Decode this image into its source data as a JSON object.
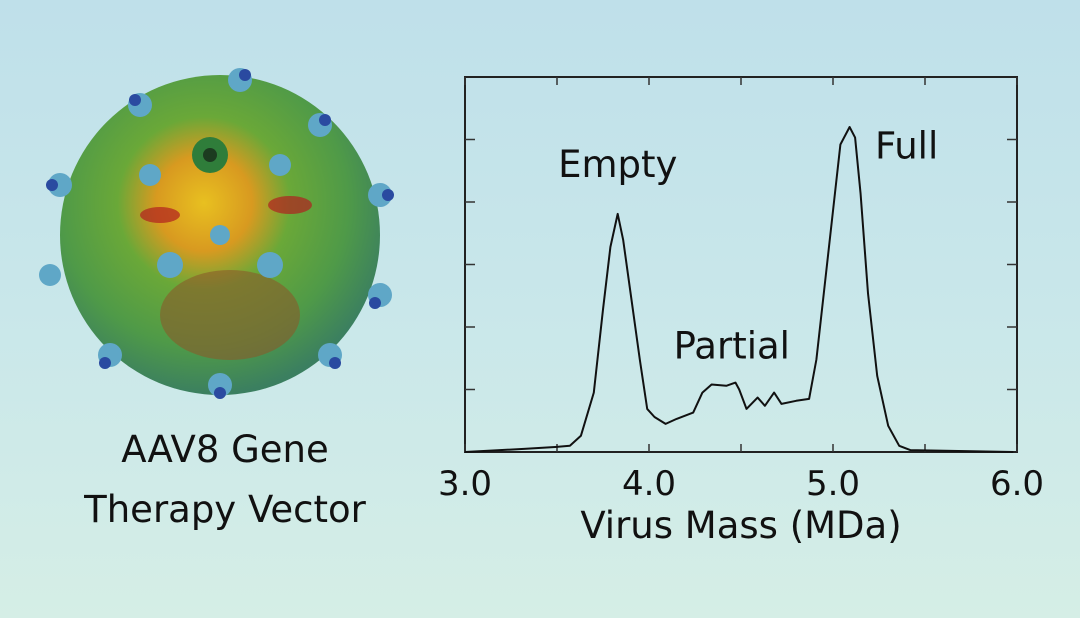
{
  "image_caption": {
    "line1": "AAV8 Gene",
    "line2": "Therapy Vector"
  },
  "chart_data": {
    "type": "line",
    "title": "",
    "xlabel": "Virus Mass (MDa)",
    "ylabel": "",
    "xlim": [
      3.0,
      6.0
    ],
    "ylim": [
      0,
      6
    ],
    "x_tick_labels": [
      "3.0",
      "4.0",
      "5.0",
      "6.0"
    ],
    "x_ticks": [
      3.0,
      3.5,
      4.0,
      4.5,
      5.0,
      5.5,
      6.0
    ],
    "y_ticks": [
      1,
      2,
      3,
      4,
      5
    ],
    "y_tick_labels_shown": false,
    "grid": false,
    "line_color": "#111111",
    "annotations": [
      {
        "text": "Empty",
        "x": 3.83,
        "y": 4.4
      },
      {
        "text": "Partial",
        "x": 4.45,
        "y": 1.5
      },
      {
        "text": "Full",
        "x": 5.4,
        "y": 4.7
      }
    ],
    "series": [
      {
        "x": [
          3.0,
          3.32,
          3.49,
          3.57,
          3.63,
          3.7,
          3.75,
          3.79,
          3.83,
          3.86,
          3.9,
          3.95,
          3.99,
          4.03,
          4.09,
          4.15,
          4.24,
          4.29,
          4.34,
          4.42,
          4.47,
          4.49,
          4.53,
          4.59,
          4.63,
          4.68,
          4.72,
          4.8,
          4.87,
          4.91,
          4.95,
          5.0,
          5.04,
          5.09,
          5.12,
          5.15,
          5.19,
          5.24,
          5.3,
          5.36,
          5.42,
          5.98
        ],
        "y": [
          0,
          0.05,
          0.08,
          0.1,
          0.26,
          0.95,
          2.28,
          3.28,
          3.81,
          3.39,
          2.54,
          1.48,
          0.69,
          0.56,
          0.45,
          0.53,
          0.63,
          0.95,
          1.08,
          1.06,
          1.11,
          1.0,
          0.69,
          0.87,
          0.74,
          0.95,
          0.77,
          0.82,
          0.85,
          1.48,
          2.54,
          3.86,
          4.92,
          5.2,
          5.03,
          4.13,
          2.54,
          1.22,
          0.42,
          0.1,
          0.03,
          0
        ]
      }
    ]
  }
}
